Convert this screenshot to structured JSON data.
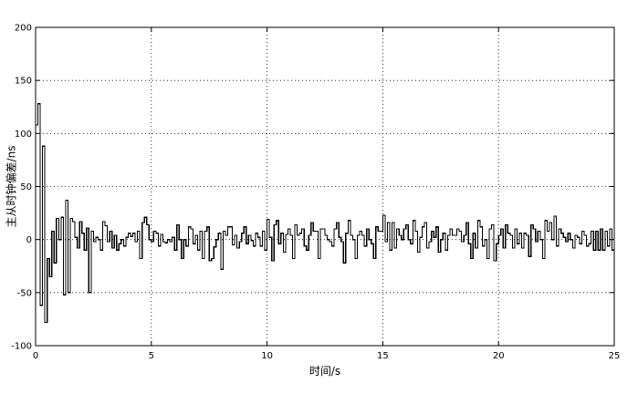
{
  "chart_data": {
    "type": "line",
    "step": true,
    "title": "",
    "xlabel": "时间/s",
    "ylabel": "主从时钟偏差/ns",
    "xlim": [
      0,
      25
    ],
    "ylim": [
      -100,
      200
    ],
    "xticks": [
      0,
      5,
      10,
      15,
      20,
      25
    ],
    "yticks": [
      -100,
      -50,
      0,
      50,
      100,
      150,
      200
    ],
    "xtick_labels": [
      "0",
      "5",
      "10",
      "15",
      "20",
      "25"
    ],
    "ytick_labels": [
      "-100",
      "-50",
      "0",
      "50",
      "100",
      "150",
      "200"
    ],
    "grid": true,
    "grid_style": "dotted",
    "series": [
      {
        "color": "#000000",
        "x": [
          0,
          0.1,
          0.2,
          0.3,
          0.4,
          0.5,
          0.6,
          0.7,
          0.8,
          0.9,
          1.0,
          1.1,
          1.2,
          1.3,
          1.4,
          1.5,
          1.6,
          1.7,
          1.8,
          1.9,
          2.0,
          2.1,
          2.2,
          2.3,
          2.4,
          2.5,
          2.6,
          2.7,
          2.8,
          2.9,
          3.0,
          3.1,
          3.2,
          3.3,
          3.4,
          3.5,
          3.6,
          3.7,
          3.8,
          3.9,
          4.0,
          4.1,
          4.2,
          4.3,
          4.4,
          4.5,
          4.6,
          4.7,
          4.8,
          4.9,
          5.0,
          5.1,
          5.2,
          5.3,
          5.4,
          5.5,
          5.6,
          5.7,
          5.8,
          5.9,
          6.0,
          6.1,
          6.2,
          6.3,
          6.4,
          6.5,
          6.6,
          6.7,
          6.8,
          6.9,
          7.0,
          7.1,
          7.2,
          7.3,
          7.4,
          7.5,
          7.6,
          7.7,
          7.8,
          7.9,
          8.0,
          8.1,
          8.2,
          8.3,
          8.4,
          8.5,
          8.6,
          8.7,
          8.8,
          8.9,
          9.0,
          9.1,
          9.2,
          9.3,
          9.4,
          9.5,
          9.6,
          9.7,
          9.8,
          9.9,
          10.0,
          10.1,
          10.2,
          10.3,
          10.4,
          10.5,
          10.6,
          10.7,
          10.8,
          10.9,
          11.0,
          11.1,
          11.2,
          11.3,
          11.4,
          11.5,
          11.6,
          11.7,
          11.8,
          11.9,
          12.0,
          12.1,
          12.2,
          12.3,
          12.4,
          12.5,
          12.6,
          12.7,
          12.8,
          12.9,
          13.0,
          13.1,
          13.2,
          13.3,
          13.4,
          13.5,
          13.6,
          13.7,
          13.8,
          13.9,
          14.0,
          14.1,
          14.2,
          14.3,
          14.4,
          14.5,
          14.6,
          14.7,
          14.8,
          14.9,
          15.0,
          15.1,
          15.2,
          15.3,
          15.4,
          15.5,
          15.6,
          15.7,
          15.8,
          15.9,
          16.0,
          16.1,
          16.2,
          16.3,
          16.4,
          16.5,
          16.6,
          16.7,
          16.8,
          16.9,
          17.0,
          17.1,
          17.2,
          17.3,
          17.4,
          17.5,
          17.6,
          17.7,
          17.8,
          17.9,
          18.0,
          18.1,
          18.2,
          18.3,
          18.4,
          18.5,
          18.6,
          18.7,
          18.8,
          18.9,
          19.0,
          19.1,
          19.2,
          19.3,
          19.4,
          19.5,
          19.6,
          19.7,
          19.8,
          19.9,
          20.0,
          20.1,
          20.2,
          20.3,
          20.4,
          20.5,
          20.6,
          20.7,
          20.8,
          20.9,
          21.0,
          21.1,
          21.2,
          21.3,
          21.4,
          21.5,
          21.6,
          21.7,
          21.8,
          21.9,
          22.0,
          22.1,
          22.2,
          22.3,
          22.4,
          22.5,
          22.6,
          22.7,
          22.8,
          22.9,
          23.0,
          23.1,
          23.2,
          23.3,
          23.4,
          23.5,
          23.6,
          23.7,
          23.8,
          23.9,
          24.0,
          24.1,
          24.2,
          24.3,
          24.4,
          24.5,
          24.6,
          24.7,
          24.8,
          24.9
        ],
        "y": [
          108,
          128,
          -62,
          88,
          -78,
          -18,
          -35,
          8,
          -22,
          20,
          0,
          21,
          -52,
          37,
          -50,
          20,
          17,
          2,
          -8,
          17,
          6,
          -10,
          11,
          -50,
          8,
          -2,
          2,
          0,
          -10,
          17,
          13,
          -2,
          8,
          -8,
          4,
          -10,
          -4,
          0,
          -6,
          2,
          6,
          3,
          6,
          -2,
          8,
          -18,
          16,
          21,
          14,
          0,
          -2,
          8,
          6,
          -6,
          5,
          -2,
          -3,
          0,
          -2,
          2,
          -10,
          14,
          0,
          -18,
          0,
          -6,
          12,
          10,
          -4,
          4,
          -10,
          8,
          -18,
          8,
          12,
          -20,
          -18,
          -7,
          0,
          6,
          -28,
          8,
          4,
          12,
          12,
          -5,
          4,
          -8,
          -2,
          6,
          12,
          -4,
          4,
          -1,
          -6,
          6,
          2,
          -6,
          8,
          -10,
          19,
          2,
          -20,
          14,
          18,
          -4,
          6,
          -12,
          5,
          10,
          4,
          -18,
          14,
          4,
          6,
          10,
          -6,
          -10,
          4,
          16,
          8,
          8,
          -18,
          10,
          10,
          4,
          0,
          -2,
          -6,
          10,
          16,
          2,
          -2,
          -22,
          6,
          18,
          4,
          0,
          -18,
          4,
          8,
          4,
          -6,
          10,
          0,
          -4,
          -18,
          12,
          8,
          8,
          23,
          -2,
          16,
          -10,
          16,
          -8,
          10,
          4,
          0,
          10,
          14,
          0,
          -4,
          18,
          8,
          -12,
          2,
          12,
          16,
          -8,
          -2,
          8,
          2,
          12,
          -12,
          0,
          6,
          -10,
          4,
          10,
          4,
          4,
          10,
          8,
          -2,
          4,
          16,
          -4,
          -18,
          6,
          -8,
          18,
          12,
          -6,
          0,
          -18,
          10,
          14,
          -20,
          -4,
          4,
          10,
          -8,
          14,
          6,
          4,
          -8,
          10,
          -4,
          6,
          -8,
          6,
          4,
          -16,
          14,
          10,
          -2,
          8,
          0,
          -18,
          18,
          8,
          16,
          0,
          22,
          -6,
          10,
          6,
          2,
          -2,
          6,
          0,
          -8,
          4,
          2,
          -4,
          8,
          4,
          -6,
          -4,
          8,
          -10,
          8,
          -10,
          10,
          -10,
          8,
          -6,
          10,
          -10
        ]
      }
    ]
  }
}
